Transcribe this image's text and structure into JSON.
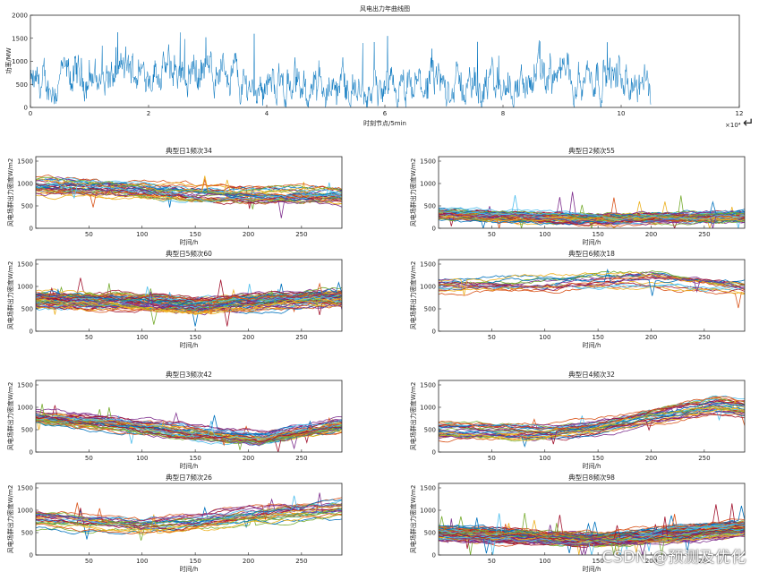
{
  "watermark": "CSDN @预测及优化",
  "enter_glyph": "↵",
  "colors": [
    "#0072BD",
    "#D95319",
    "#EDB120",
    "#7E2F8E",
    "#77AC30",
    "#4DBEEE",
    "#A2142F"
  ],
  "chart_data": [
    {
      "id": "annual",
      "type": "line",
      "title": "风电出力年曲线图",
      "xlabel": "时刻节点/5min",
      "ylabel": "功率/MW",
      "xlim": [
        0,
        12
      ],
      "ylim": [
        0,
        2000
      ],
      "xticks": [
        0,
        2,
        4,
        6,
        8,
        10,
        12
      ],
      "yticks": [
        0,
        500,
        1000,
        1500,
        2000
      ],
      "x_exponent": "×10⁴",
      "series_count": 1,
      "x_end": 10.5,
      "segments": [
        {
          "x0": 0.0,
          "x1": 0.5,
          "level": 450
        },
        {
          "x0": 0.5,
          "x1": 1.5,
          "level": 650
        },
        {
          "x0": 1.5,
          "x1": 3.5,
          "level": 800
        },
        {
          "x0": 3.5,
          "x1": 4.5,
          "level": 500
        },
        {
          "x0": 4.5,
          "x1": 5.5,
          "level": 420
        },
        {
          "x0": 5.5,
          "x1": 6.5,
          "level": 280
        },
        {
          "x0": 6.5,
          "x1": 8.5,
          "level": 480
        },
        {
          "x0": 8.5,
          "x1": 10.0,
          "level": 700
        },
        {
          "x0": 10.0,
          "x1": 10.5,
          "level": 450
        }
      ],
      "peak": 1650
    },
    {
      "id": "day1",
      "type": "line",
      "title": "典型日1频次34",
      "xlabel": "时间/h",
      "ylabel": "风电场群出力密度W/m2",
      "xlim": [
        0,
        288
      ],
      "ylim": [
        0,
        1600
      ],
      "xticks": [
        50,
        100,
        150,
        200,
        250
      ],
      "yticks": [
        0,
        500,
        1000,
        1500
      ],
      "series_count": 34,
      "profile": [
        [
          0,
          950
        ],
        [
          100,
          880
        ],
        [
          150,
          800
        ],
        [
          200,
          750
        ],
        [
          288,
          720
        ]
      ],
      "spread": 170,
      "noise": 70,
      "spike": 450
    },
    {
      "id": "day2",
      "type": "line",
      "title": "典型日2频次55",
      "xlabel": "时间/h",
      "ylabel": "风电场群出力密度W/m2",
      "xlim": [
        0,
        288
      ],
      "ylim": [
        0,
        1600
      ],
      "xticks": [
        50,
        100,
        150,
        200,
        250
      ],
      "yticks": [
        0,
        500,
        1000,
        1500
      ],
      "series_count": 55,
      "profile": [
        [
          0,
          320
        ],
        [
          100,
          230
        ],
        [
          150,
          200
        ],
        [
          200,
          220
        ],
        [
          288,
          260
        ]
      ],
      "spread": 100,
      "noise": 60,
      "spike": 550
    },
    {
      "id": "day5",
      "type": "line",
      "title": "典型日5频次60",
      "xlabel": "时间/h",
      "ylabel": "风电场群出力密度W/m2",
      "xlim": [
        0,
        288
      ],
      "ylim": [
        0,
        1600
      ],
      "xticks": [
        50,
        100,
        150,
        200,
        250
      ],
      "yticks": [
        0,
        500,
        1000,
        1500
      ],
      "series_count": 60,
      "profile": [
        [
          0,
          700
        ],
        [
          100,
          650
        ],
        [
          150,
          560
        ],
        [
          200,
          650
        ],
        [
          288,
          760
        ]
      ],
      "spread": 140,
      "noise": 70,
      "spike": 450
    },
    {
      "id": "day6",
      "type": "line",
      "title": "典型日6频次18",
      "xlabel": "时间/h",
      "ylabel": "风电场群出力密度W/m2",
      "xlim": [
        0,
        288
      ],
      "ylim": [
        0,
        1600
      ],
      "xticks": [
        50,
        100,
        150,
        200,
        250
      ],
      "yticks": [
        0,
        500,
        1000,
        1500
      ],
      "series_count": 18,
      "profile": [
        [
          0,
          1000
        ],
        [
          100,
          1000
        ],
        [
          150,
          1080
        ],
        [
          200,
          1150
        ],
        [
          288,
          950
        ]
      ],
      "spread": 170,
      "noise": 60,
      "spike": 450
    },
    {
      "id": "day3",
      "type": "line",
      "title": "典型日3频次42",
      "xlabel": "时间/h",
      "ylabel": "风电场群出力密度W/m2",
      "xlim": [
        0,
        288
      ],
      "ylim": [
        0,
        1600
      ],
      "xticks": [
        50,
        100,
        150,
        200,
        250
      ],
      "yticks": [
        0,
        500,
        1000,
        1500
      ],
      "series_count": 42,
      "profile": [
        [
          0,
          780
        ],
        [
          100,
          560
        ],
        [
          150,
          420
        ],
        [
          210,
          300
        ],
        [
          288,
          600
        ]
      ],
      "spread": 150,
      "noise": 60,
      "spike": 400
    },
    {
      "id": "day4",
      "type": "line",
      "title": "典型日4频次32",
      "xlabel": "时间/h",
      "ylabel": "风电场群出力密度W/m2",
      "xlim": [
        0,
        288
      ],
      "ylim": [
        0,
        1600
      ],
      "xticks": [
        50,
        100,
        150,
        200,
        250
      ],
      "yticks": [
        0,
        500,
        1000,
        1500
      ],
      "series_count": 32,
      "profile": [
        [
          0,
          480
        ],
        [
          100,
          420
        ],
        [
          150,
          560
        ],
        [
          200,
          800
        ],
        [
          260,
          1050
        ],
        [
          288,
          950
        ]
      ],
      "spread": 160,
      "noise": 55,
      "spike": 300
    },
    {
      "id": "day7",
      "type": "line",
      "title": "典型日7频次26",
      "xlabel": "时间/h",
      "ylabel": "风电场群出力密度W/m2",
      "xlim": [
        0,
        288
      ],
      "ylim": [
        0,
        1600
      ],
      "xticks": [
        50,
        100,
        150,
        200,
        250
      ],
      "yticks": [
        0,
        500,
        1000,
        1500
      ],
      "series_count": 26,
      "profile": [
        [
          0,
          800
        ],
        [
          100,
          640
        ],
        [
          150,
          720
        ],
        [
          200,
          880
        ],
        [
          288,
          1020
        ]
      ],
      "spread": 170,
      "noise": 60,
      "spike": 450
    },
    {
      "id": "day8",
      "type": "line",
      "title": "典型日8频次98",
      "xlabel": "时间/h",
      "ylabel": "风电场群出力密度W/m2",
      "xlim": [
        0,
        288
      ],
      "ylim": [
        0,
        1600
      ],
      "xticks": [
        50,
        100,
        150,
        200,
        250
      ],
      "yticks": [
        0,
        500,
        1000,
        1500
      ],
      "series_count": 98,
      "profile": [
        [
          0,
          480
        ],
        [
          100,
          380
        ],
        [
          150,
          330
        ],
        [
          200,
          420
        ],
        [
          288,
          600
        ]
      ],
      "spread": 130,
      "noise": 60,
      "spike": 550
    }
  ]
}
